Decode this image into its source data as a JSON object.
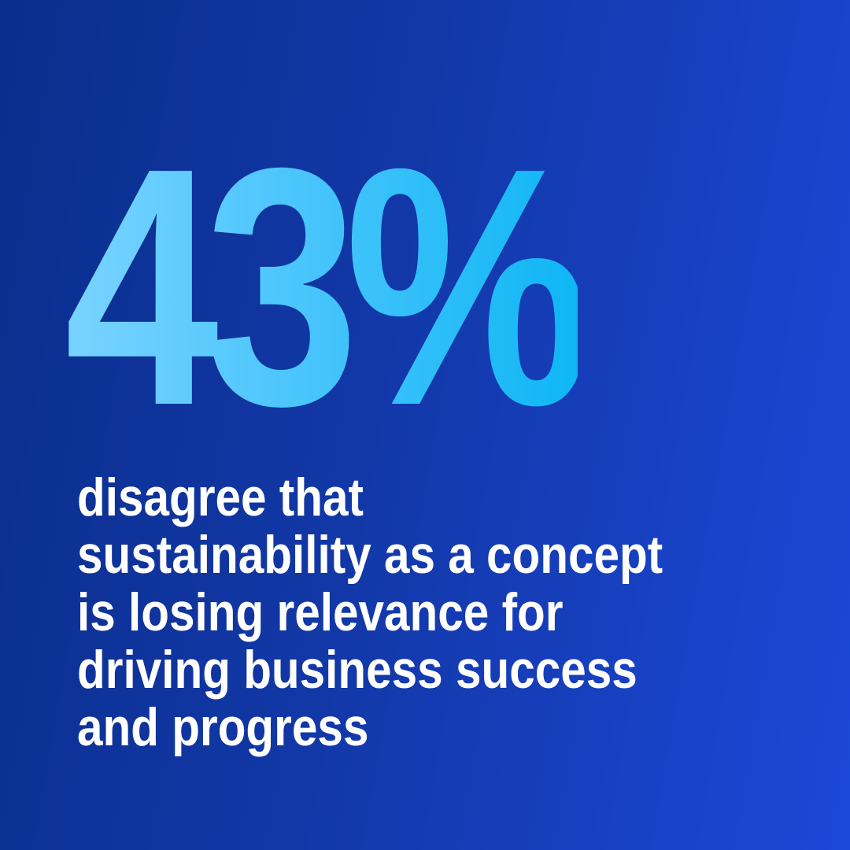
{
  "stat": {
    "value": "43%"
  },
  "caption": {
    "lines": [
      "disagree that",
      "sustainability as a concept",
      "is losing relevance for",
      "driving business success",
      "and progress"
    ]
  },
  "colors": {
    "background_start": "#0a2e8c",
    "background_end": "#1c48d8",
    "stat_start": "#7ad3ff",
    "stat_end": "#0fb6f5",
    "caption": "#ffffff"
  }
}
